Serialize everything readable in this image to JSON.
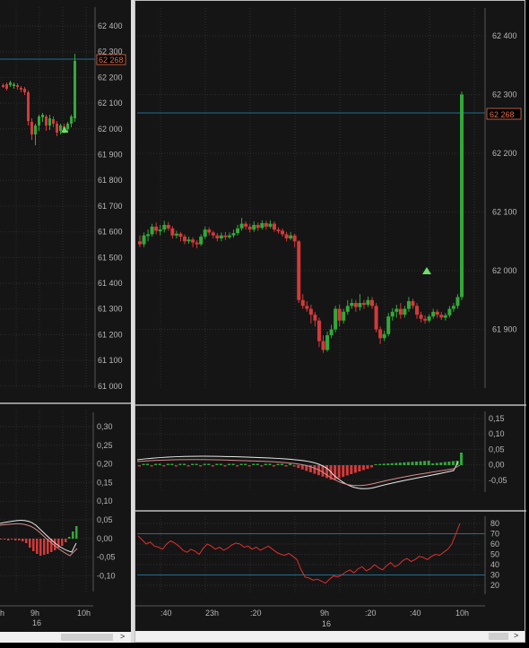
{
  "left_chart": {
    "price_ticks": [
      "62 400",
      "62 300",
      "62 200",
      "62 100",
      "62 000",
      "61 900",
      "61 800",
      "61 700",
      "61 600",
      "61 500",
      "61 400",
      "61 300",
      "61 200",
      "61 100",
      "61 000"
    ],
    "price_tag_top": "62 300",
    "price_tag": "62 268",
    "osc_ticks": [
      "0,30",
      "0,25",
      "0,20",
      "0,15",
      "0,10",
      "0,05",
      "0,00",
      "-0,05",
      "-0,10"
    ],
    "time_labels": [
      "h",
      "9h",
      "10h"
    ],
    "date_label": "16"
  },
  "right_chart": {
    "price_ticks": [
      "62 400",
      "62 300",
      "62 200",
      "62 100",
      "62 000",
      "61 900"
    ],
    "price_tag": "62 268",
    "osc_ticks": [
      "0,15",
      "0,10",
      "0,05",
      "0,00",
      "-0,05"
    ],
    "rsi_ticks": [
      "80",
      "70",
      "60",
      "50",
      "40",
      "30",
      "20"
    ],
    "time_labels": [
      ":40",
      "23h",
      ":20",
      "9h",
      ":20",
      ":40",
      "10h"
    ],
    "date_label": "16"
  },
  "colors": {
    "up": "#33a83a",
    "down": "#d43a3a",
    "grid": "#2e2e2e",
    "level": "#1f6f8f",
    "rsi_line": "#e03030",
    "frame": "#bdbdbd",
    "tag": "#e07050"
  },
  "icons": {
    "scroll_right": "chevron-right-icon"
  },
  "scroll_arrow_glyph": ">"
}
